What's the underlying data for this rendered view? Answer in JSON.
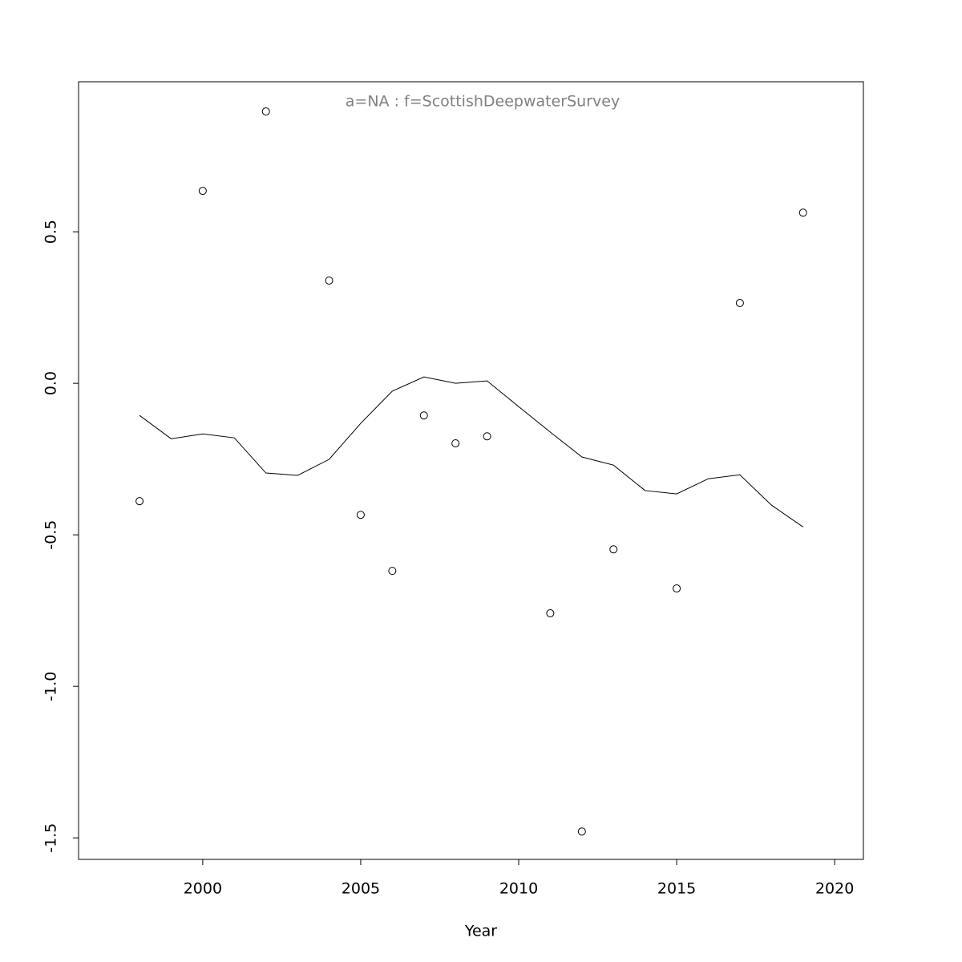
{
  "chart_data": {
    "type": "scatter",
    "title": "a=NA  :  f=ScottishDeepwaterSurvey",
    "xlabel": "Year",
    "xlim": [
      1996.07,
      2020.91
    ],
    "ylim": [
      -1.571,
      0.995
    ],
    "xticks": [
      2000,
      2005,
      2010,
      2015,
      2020
    ],
    "yticks": [
      -1.5,
      {
        "value": -1,
        "label": "-1.0"
      },
      -0.5,
      {
        "value": 0,
        "label": "0.0"
      },
      0.5
    ],
    "series": [
      {
        "type": "scatter",
        "color": "#000000",
        "x": [
          1998,
          2000,
          2002,
          2004,
          2005,
          2006,
          2007,
          2008,
          2009,
          2011,
          2012,
          2013,
          2015,
          2017,
          2019
        ],
        "values": [
          -0.389,
          0.635,
          0.897,
          0.339,
          -0.434,
          -0.619,
          -0.106,
          -0.198,
          -0.175,
          -0.759,
          -1.479,
          -0.548,
          -0.677,
          0.265,
          0.563
        ]
      },
      {
        "type": "line",
        "color": "#000000",
        "x": [
          1998,
          1999,
          2000,
          2001,
          2002,
          2003,
          2004,
          2005,
          2006,
          2007,
          2008,
          2009,
          2010,
          2011,
          2012,
          2013,
          2014,
          2015,
          2016,
          2017,
          2018,
          2019
        ],
        "values": [
          -0.106,
          -0.183,
          -0.167,
          -0.18,
          -0.296,
          -0.304,
          -0.251,
          -0.132,
          -0.026,
          0.021,
          0.0,
          0.008,
          -0.077,
          -0.161,
          -0.243,
          -0.27,
          -0.354,
          -0.365,
          -0.315,
          -0.302,
          -0.402,
          -0.474
        ]
      }
    ]
  }
}
